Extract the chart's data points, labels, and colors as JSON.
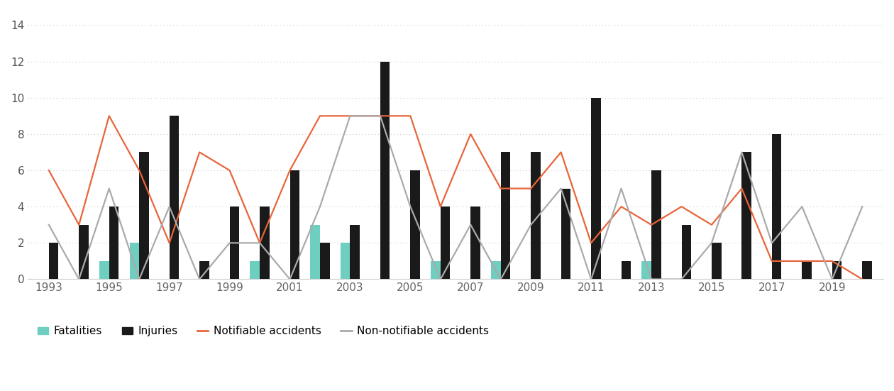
{
  "years": [
    1993,
    1994,
    1995,
    1996,
    1997,
    1998,
    1999,
    2000,
    2001,
    2002,
    2003,
    2004,
    2005,
    2006,
    2007,
    2008,
    2009,
    2010,
    2011,
    2012,
    2013,
    2014,
    2015,
    2016,
    2017,
    2018,
    2019,
    2020
  ],
  "fatalities": [
    0,
    0,
    1,
    2,
    0,
    0,
    0,
    1,
    0,
    3,
    2,
    0,
    0,
    1,
    0,
    1,
    0,
    0,
    0,
    0,
    1,
    0,
    0,
    0,
    0,
    0,
    0,
    0
  ],
  "injuries": [
    2,
    3,
    4,
    7,
    9,
    1,
    4,
    4,
    6,
    2,
    3,
    12,
    6,
    4,
    4,
    7,
    7,
    5,
    10,
    1,
    6,
    3,
    2,
    7,
    8,
    1,
    1,
    1
  ],
  "notifiable": [
    6,
    3,
    9,
    6,
    2,
    7,
    6,
    2,
    6,
    9,
    9,
    9,
    9,
    4,
    8,
    5,
    5,
    7,
    2,
    4,
    3,
    4,
    3,
    5,
    1,
    1,
    1,
    0
  ],
  "non_notifiable": [
    3,
    0,
    5,
    0,
    4,
    0,
    2,
    2,
    0,
    4,
    9,
    9,
    4,
    0,
    3,
    0,
    3,
    5,
    0,
    5,
    0,
    0,
    2,
    7,
    2,
    4,
    0,
    4
  ],
  "bar_width": 0.32,
  "fatalities_color": "#6ecec0",
  "injuries_color": "#1a1a1a",
  "notifiable_color": "#e8653a",
  "non_notifiable_color": "#aaaaaa",
  "bg_color": "#ffffff",
  "yticks": [
    0,
    2,
    4,
    6,
    8,
    10,
    12,
    14
  ],
  "ylim": [
    0,
    14.8
  ],
  "xtick_years": [
    1993,
    1995,
    1997,
    1999,
    2001,
    2003,
    2005,
    2007,
    2009,
    2011,
    2013,
    2015,
    2017,
    2019
  ]
}
